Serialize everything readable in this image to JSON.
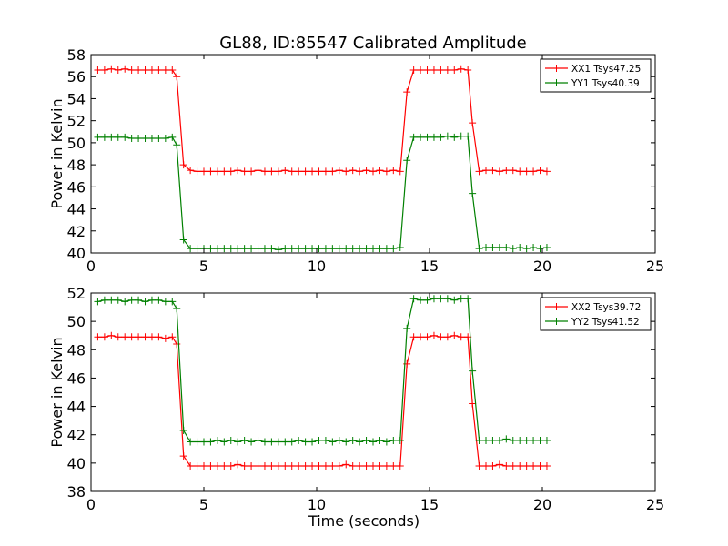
{
  "figure": {
    "title": "GL88, ID:85547 Calibrated Amplitude"
  },
  "chart_data": [
    {
      "type": "line",
      "title": "GL88, ID:85547 Calibrated Amplitude",
      "xlabel": "",
      "ylabel": "Power in Kelvin",
      "xlim": [
        0,
        25
      ],
      "ylim": [
        40,
        58
      ],
      "xticks": [
        0,
        5,
        10,
        15,
        20,
        25
      ],
      "yticks": [
        40,
        42,
        44,
        46,
        48,
        50,
        52,
        54,
        56,
        58
      ],
      "grid": false,
      "legend": "top-right",
      "series": [
        {
          "name": "XX1 Tsys47.25",
          "color": "#ff0000",
          "x": [
            0.3,
            0.6,
            0.9,
            1.2,
            1.5,
            1.8,
            2.1,
            2.4,
            2.7,
            3.0,
            3.3,
            3.6,
            3.8,
            4.1,
            4.4,
            4.7,
            5.0,
            5.3,
            5.6,
            5.9,
            6.2,
            6.5,
            6.8,
            7.1,
            7.4,
            7.7,
            8.0,
            8.3,
            8.6,
            8.9,
            9.2,
            9.5,
            9.8,
            10.1,
            10.4,
            10.7,
            11.0,
            11.3,
            11.6,
            11.9,
            12.2,
            12.5,
            12.8,
            13.1,
            13.4,
            13.7,
            14.0,
            14.3,
            14.6,
            14.9,
            15.2,
            15.5,
            15.8,
            16.1,
            16.4,
            16.7,
            16.9,
            17.2,
            17.5,
            17.8,
            18.1,
            18.4,
            18.7,
            19.0,
            19.3,
            19.6,
            19.9,
            20.2
          ],
          "values": [
            56.6,
            56.6,
            56.7,
            56.6,
            56.7,
            56.6,
            56.6,
            56.6,
            56.6,
            56.6,
            56.6,
            56.6,
            56.0,
            48.0,
            47.5,
            47.4,
            47.4,
            47.4,
            47.4,
            47.4,
            47.4,
            47.5,
            47.4,
            47.4,
            47.5,
            47.4,
            47.4,
            47.4,
            47.5,
            47.4,
            47.4,
            47.4,
            47.4,
            47.4,
            47.4,
            47.4,
            47.5,
            47.4,
            47.5,
            47.4,
            47.5,
            47.4,
            47.5,
            47.4,
            47.5,
            47.4,
            54.6,
            56.6,
            56.6,
            56.6,
            56.6,
            56.6,
            56.6,
            56.6,
            56.7,
            56.6,
            51.8,
            47.4,
            47.5,
            47.5,
            47.4,
            47.5,
            47.5,
            47.4,
            47.4,
            47.4,
            47.5,
            47.4
          ]
        },
        {
          "name": "YY1 Tsys40.39",
          "color": "#008000",
          "x": [
            0.3,
            0.6,
            0.9,
            1.2,
            1.5,
            1.8,
            2.1,
            2.4,
            2.7,
            3.0,
            3.3,
            3.6,
            3.8,
            4.1,
            4.4,
            4.7,
            5.0,
            5.3,
            5.6,
            5.9,
            6.2,
            6.5,
            6.8,
            7.1,
            7.4,
            7.7,
            8.0,
            8.3,
            8.6,
            8.9,
            9.2,
            9.5,
            9.8,
            10.1,
            10.4,
            10.7,
            11.0,
            11.3,
            11.6,
            11.9,
            12.2,
            12.5,
            12.8,
            13.1,
            13.4,
            13.7,
            14.0,
            14.3,
            14.6,
            14.9,
            15.2,
            15.5,
            15.8,
            16.1,
            16.4,
            16.7,
            16.9,
            17.2,
            17.5,
            17.8,
            18.1,
            18.4,
            18.7,
            19.0,
            19.3,
            19.6,
            19.9,
            20.2
          ],
          "values": [
            50.5,
            50.5,
            50.5,
            50.5,
            50.5,
            50.4,
            50.4,
            50.4,
            50.4,
            50.4,
            50.4,
            50.5,
            49.8,
            41.2,
            40.4,
            40.4,
            40.4,
            40.4,
            40.4,
            40.4,
            40.4,
            40.4,
            40.4,
            40.4,
            40.4,
            40.4,
            40.4,
            40.3,
            40.4,
            40.4,
            40.4,
            40.4,
            40.4,
            40.4,
            40.4,
            40.4,
            40.4,
            40.4,
            40.4,
            40.4,
            40.4,
            40.4,
            40.4,
            40.4,
            40.4,
            40.5,
            48.4,
            50.5,
            50.5,
            50.5,
            50.5,
            50.5,
            50.6,
            50.5,
            50.6,
            50.6,
            45.4,
            40.4,
            40.5,
            40.5,
            40.5,
            40.5,
            40.4,
            40.5,
            40.4,
            40.5,
            40.4,
            40.5
          ]
        }
      ]
    },
    {
      "type": "line",
      "title": "",
      "xlabel": "Time (seconds)",
      "ylabel": "Power in Kelvin",
      "xlim": [
        0,
        25
      ],
      "ylim": [
        38,
        52
      ],
      "xticks": [
        0,
        5,
        10,
        15,
        20,
        25
      ],
      "yticks": [
        38,
        40,
        42,
        44,
        46,
        48,
        50,
        52
      ],
      "grid": false,
      "legend": "top-right",
      "series": [
        {
          "name": "XX2 Tsys39.72",
          "color": "#ff0000",
          "x": [
            0.3,
            0.6,
            0.9,
            1.2,
            1.5,
            1.8,
            2.1,
            2.4,
            2.7,
            3.0,
            3.3,
            3.6,
            3.8,
            4.1,
            4.4,
            4.7,
            5.0,
            5.3,
            5.6,
            5.9,
            6.2,
            6.5,
            6.8,
            7.1,
            7.4,
            7.7,
            8.0,
            8.3,
            8.6,
            8.9,
            9.2,
            9.5,
            9.8,
            10.1,
            10.4,
            10.7,
            11.0,
            11.3,
            11.6,
            11.9,
            12.2,
            12.5,
            12.8,
            13.1,
            13.4,
            13.7,
            14.0,
            14.3,
            14.6,
            14.9,
            15.2,
            15.5,
            15.8,
            16.1,
            16.4,
            16.7,
            16.9,
            17.2,
            17.5,
            17.8,
            18.1,
            18.4,
            18.7,
            19.0,
            19.3,
            19.6,
            19.9,
            20.2
          ],
          "values": [
            48.9,
            48.9,
            49.0,
            48.9,
            48.9,
            48.9,
            48.9,
            48.9,
            48.9,
            48.9,
            48.8,
            48.9,
            48.4,
            40.5,
            39.8,
            39.8,
            39.8,
            39.8,
            39.8,
            39.8,
            39.8,
            39.9,
            39.8,
            39.8,
            39.8,
            39.8,
            39.8,
            39.8,
            39.8,
            39.8,
            39.8,
            39.8,
            39.8,
            39.8,
            39.8,
            39.8,
            39.8,
            39.9,
            39.8,
            39.8,
            39.8,
            39.8,
            39.8,
            39.8,
            39.8,
            39.8,
            47.0,
            48.9,
            48.9,
            48.9,
            49.0,
            48.9,
            48.9,
            49.0,
            48.9,
            48.9,
            44.2,
            39.8,
            39.8,
            39.8,
            39.9,
            39.8,
            39.8,
            39.8,
            39.8,
            39.8,
            39.8,
            39.8
          ]
        },
        {
          "name": "YY2 Tsys41.52",
          "color": "#008000",
          "x": [
            0.3,
            0.6,
            0.9,
            1.2,
            1.5,
            1.8,
            2.1,
            2.4,
            2.7,
            3.0,
            3.3,
            3.6,
            3.8,
            4.1,
            4.4,
            4.7,
            5.0,
            5.3,
            5.6,
            5.9,
            6.2,
            6.5,
            6.8,
            7.1,
            7.4,
            7.7,
            8.0,
            8.3,
            8.6,
            8.9,
            9.2,
            9.5,
            9.8,
            10.1,
            10.4,
            10.7,
            11.0,
            11.3,
            11.6,
            11.9,
            12.2,
            12.5,
            12.8,
            13.1,
            13.4,
            13.7,
            14.0,
            14.3,
            14.6,
            14.9,
            15.2,
            15.5,
            15.8,
            16.1,
            16.4,
            16.7,
            16.9,
            17.2,
            17.5,
            17.8,
            18.1,
            18.4,
            18.7,
            19.0,
            19.3,
            19.6,
            19.9,
            20.2
          ],
          "values": [
            51.4,
            51.5,
            51.5,
            51.5,
            51.4,
            51.5,
            51.5,
            51.4,
            51.5,
            51.5,
            51.4,
            51.4,
            50.9,
            42.3,
            41.5,
            41.5,
            41.5,
            41.5,
            41.6,
            41.5,
            41.6,
            41.5,
            41.6,
            41.5,
            41.6,
            41.5,
            41.5,
            41.5,
            41.5,
            41.5,
            41.6,
            41.5,
            41.5,
            41.6,
            41.6,
            41.5,
            41.6,
            41.5,
            41.6,
            41.5,
            41.6,
            41.5,
            41.6,
            41.5,
            41.6,
            41.6,
            49.5,
            51.6,
            51.5,
            51.5,
            51.6,
            51.6,
            51.6,
            51.5,
            51.6,
            51.6,
            46.5,
            41.6,
            41.6,
            41.6,
            41.6,
            41.7,
            41.6,
            41.6,
            41.6,
            41.6,
            41.6,
            41.6
          ]
        }
      ]
    }
  ]
}
